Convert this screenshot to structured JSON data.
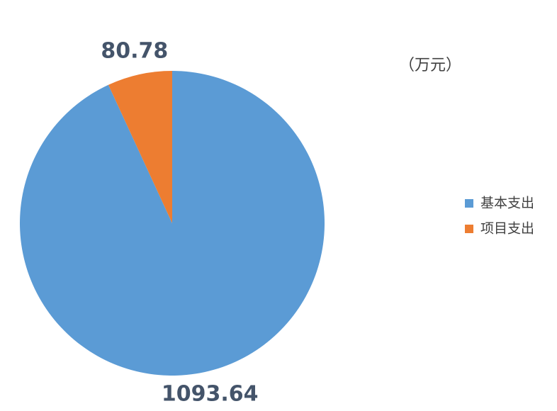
{
  "chart_data": {
    "type": "pie",
    "subtitle": "（万元）",
    "categories": [
      "基本支出",
      "项目支出"
    ],
    "values": [
      1093.64,
      80.78
    ],
    "colors": [
      "#5b9bd5",
      "#ed7d31"
    ],
    "legend": "right"
  }
}
